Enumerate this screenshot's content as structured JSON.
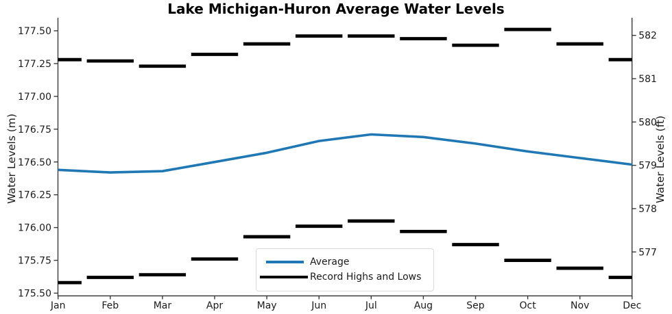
{
  "title": "Lake Michigan-Huron Average Water Levels",
  "chart_data": {
    "type": "line",
    "title": "Lake Michigan-Huron Average Water Levels",
    "categories": [
      "Jan",
      "Feb",
      "Mar",
      "Apr",
      "May",
      "Jun",
      "Jul",
      "Aug",
      "Sep",
      "Oct",
      "Nov",
      "Dec"
    ],
    "series": [
      {
        "name": "Average",
        "style": "line",
        "color": "#1f77b4",
        "unit": "m",
        "values": [
          176.44,
          176.42,
          176.43,
          176.5,
          176.57,
          176.66,
          176.71,
          176.69,
          176.64,
          176.58,
          176.53,
          176.48
        ]
      },
      {
        "name": "Record Highs and Lows",
        "style": "horizontal-dash-markers",
        "color": "#000000",
        "unit": "m",
        "highs": [
          177.28,
          177.27,
          177.23,
          177.32,
          177.4,
          177.46,
          177.46,
          177.44,
          177.39,
          177.51,
          177.4,
          177.28
        ],
        "lows": [
          175.58,
          175.62,
          175.64,
          175.76,
          175.93,
          176.01,
          176.05,
          175.97,
          175.87,
          175.75,
          175.69,
          175.62
        ]
      }
    ],
    "left_axis": {
      "label": "Water Levels (m)",
      "tick_labels": [
        "177.50",
        "177.25",
        "177.00",
        "176.75",
        "176.50",
        "176.25",
        "176.00",
        "175.75",
        "175.50"
      ],
      "tick_values": [
        177.5,
        177.25,
        177.0,
        176.75,
        176.5,
        176.25,
        176.0,
        175.75,
        175.5
      ],
      "range": [
        175.47,
        177.6
      ]
    },
    "right_axis": {
      "label": "Water Levels (ft)",
      "tick_labels": [
        "582",
        "581",
        "580",
        "579",
        "578",
        "577"
      ],
      "tick_values": [
        582,
        581,
        580,
        579,
        578,
        577
      ],
      "range": [
        576.0,
        582.4
      ]
    },
    "x_axis": {
      "tick_labels": [
        "Jan",
        "Feb",
        "Mar",
        "Apr",
        "May",
        "Jun",
        "Jul",
        "Aug",
        "Sep",
        "Oct",
        "Nov",
        "Dec"
      ]
    },
    "legend": {
      "position": "lower-center-left",
      "entries": [
        "Average",
        "Record Highs and Lows"
      ]
    },
    "grid": false
  },
  "colors": {
    "average_line": "#1f77b4",
    "record_marks": "#000000",
    "axis": "#3a3a3a",
    "text": "#1a1a1a",
    "legend_border": "#d9d9d9"
  }
}
